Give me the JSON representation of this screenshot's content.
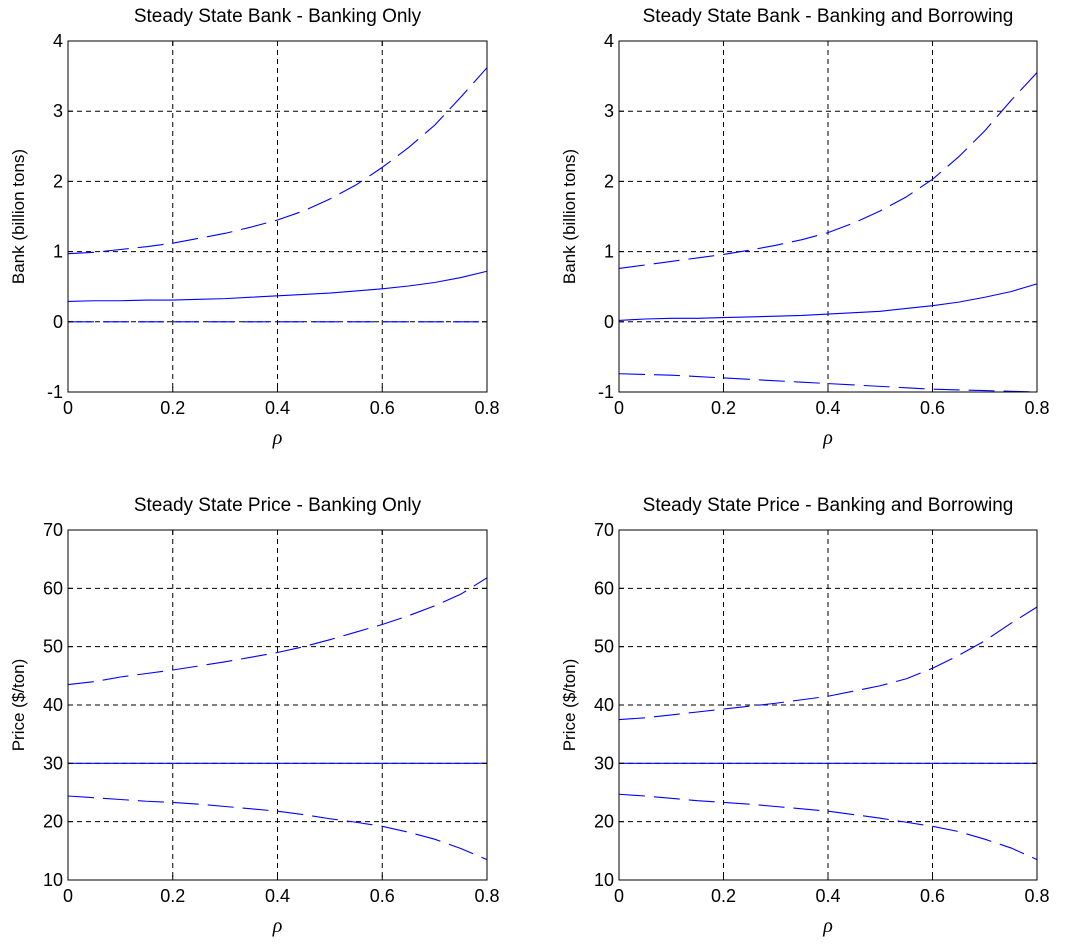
{
  "chart_data": [
    {
      "type": "line",
      "title": "Steady State Bank - Banking Only",
      "xlabel": "ρ",
      "ylabel": "Bank (billion tons)",
      "xlim": [
        0,
        0.8
      ],
      "ylim": [
        -1,
        4
      ],
      "xticks": [
        0,
        0.2,
        0.4,
        0.6,
        0.8
      ],
      "xtick_labels": [
        "0",
        "0.2",
        "0.4",
        "0.6",
        "0.8"
      ],
      "yticks": [
        -1,
        0,
        1,
        2,
        3,
        4
      ],
      "ytick_labels": [
        "-1",
        "0",
        "1",
        "2",
        "3",
        "4"
      ],
      "grid": true,
      "color": "#0000ff",
      "x": [
        0,
        0.05,
        0.1,
        0.15,
        0.2,
        0.25,
        0.3,
        0.35,
        0.4,
        0.45,
        0.5,
        0.55,
        0.6,
        0.65,
        0.7,
        0.75,
        0.8
      ],
      "series": [
        {
          "style": "dashed",
          "values": [
            0.97,
            0.99,
            1.03,
            1.07,
            1.12,
            1.19,
            1.26,
            1.35,
            1.45,
            1.58,
            1.75,
            1.95,
            2.2,
            2.48,
            2.8,
            3.2,
            3.62
          ]
        },
        {
          "style": "solid",
          "values": [
            0.29,
            0.3,
            0.3,
            0.31,
            0.31,
            0.32,
            0.33,
            0.35,
            0.37,
            0.39,
            0.41,
            0.44,
            0.47,
            0.51,
            0.56,
            0.63,
            0.72
          ]
        },
        {
          "style": "dashed",
          "values": [
            0,
            0,
            0,
            0,
            0,
            0,
            0,
            0,
            0,
            0,
            0,
            0,
            0,
            0,
            0,
            0,
            0
          ]
        }
      ]
    },
    {
      "type": "line",
      "title": "Steady State Bank - Banking and Borrowing",
      "xlabel": "ρ",
      "ylabel": "Bank (billion tons)",
      "xlim": [
        0,
        0.8
      ],
      "ylim": [
        -1,
        4
      ],
      "xticks": [
        0,
        0.2,
        0.4,
        0.6,
        0.8
      ],
      "xtick_labels": [
        "0",
        "0.2",
        "0.4",
        "0.6",
        "0.8"
      ],
      "yticks": [
        -1,
        0,
        1,
        2,
        3,
        4
      ],
      "ytick_labels": [
        "-1",
        "0",
        "1",
        "2",
        "3",
        "4"
      ],
      "grid": true,
      "color": "#0000ff",
      "x": [
        0,
        0.05,
        0.1,
        0.15,
        0.2,
        0.25,
        0.3,
        0.35,
        0.4,
        0.45,
        0.5,
        0.55,
        0.6,
        0.65,
        0.7,
        0.75,
        0.8
      ],
      "series": [
        {
          "style": "dashed",
          "values": [
            0.76,
            0.81,
            0.86,
            0.91,
            0.96,
            1.02,
            1.09,
            1.17,
            1.27,
            1.41,
            1.58,
            1.78,
            2.03,
            2.35,
            2.72,
            3.15,
            3.55
          ]
        },
        {
          "style": "solid",
          "values": [
            0.02,
            0.04,
            0.05,
            0.05,
            0.06,
            0.07,
            0.08,
            0.09,
            0.11,
            0.13,
            0.15,
            0.19,
            0.23,
            0.28,
            0.35,
            0.43,
            0.54
          ]
        },
        {
          "style": "dashed",
          "values": [
            -0.74,
            -0.75,
            -0.76,
            -0.78,
            -0.8,
            -0.82,
            -0.84,
            -0.86,
            -0.88,
            -0.9,
            -0.92,
            -0.94,
            -0.96,
            -0.97,
            -0.98,
            -0.99,
            -1.0
          ]
        }
      ]
    },
    {
      "type": "line",
      "title": "Steady State Price - Banking Only",
      "xlabel": "ρ",
      "ylabel": "Price ($/ton)",
      "xlim": [
        0,
        0.8
      ],
      "ylim": [
        10,
        70
      ],
      "xticks": [
        0,
        0.2,
        0.4,
        0.6,
        0.8
      ],
      "xtick_labels": [
        "0",
        "0.2",
        "0.4",
        "0.6",
        "0.8"
      ],
      "yticks": [
        10,
        20,
        30,
        40,
        50,
        60,
        70
      ],
      "ytick_labels": [
        "10",
        "20",
        "30",
        "40",
        "50",
        "60",
        "70"
      ],
      "grid": true,
      "color": "#0000ff",
      "x": [
        0,
        0.05,
        0.1,
        0.15,
        0.2,
        0.25,
        0.3,
        0.35,
        0.4,
        0.45,
        0.5,
        0.55,
        0.6,
        0.65,
        0.7,
        0.75,
        0.8
      ],
      "series": [
        {
          "style": "dashed",
          "values": [
            43.5,
            44.0,
            44.8,
            45.4,
            46.0,
            46.7,
            47.4,
            48.2,
            49.0,
            50.0,
            51.2,
            52.5,
            53.8,
            55.3,
            57.0,
            59.0,
            61.8
          ]
        },
        {
          "style": "solid",
          "values": [
            30,
            30,
            30,
            30,
            30,
            30,
            30,
            30,
            30,
            30,
            30,
            30,
            30,
            30,
            30,
            30,
            30
          ]
        },
        {
          "style": "dashed",
          "values": [
            24.4,
            24.1,
            23.8,
            23.5,
            23.3,
            23.0,
            22.6,
            22.2,
            21.8,
            21.2,
            20.5,
            19.9,
            19.2,
            18.2,
            17.0,
            15.4,
            13.5
          ]
        }
      ]
    },
    {
      "type": "line",
      "title": "Steady State Price - Banking and Borrowing",
      "xlabel": "ρ",
      "ylabel": "Price ($/ton)",
      "xlim": [
        0,
        0.8
      ],
      "ylim": [
        10,
        70
      ],
      "xticks": [
        0,
        0.2,
        0.4,
        0.6,
        0.8
      ],
      "xtick_labels": [
        "0",
        "0.2",
        "0.4",
        "0.6",
        "0.8"
      ],
      "yticks": [
        10,
        20,
        30,
        40,
        50,
        60,
        70
      ],
      "ytick_labels": [
        "10",
        "20",
        "30",
        "40",
        "50",
        "60",
        "70"
      ],
      "grid": true,
      "color": "#0000ff",
      "x": [
        0,
        0.05,
        0.1,
        0.15,
        0.2,
        0.25,
        0.3,
        0.35,
        0.4,
        0.45,
        0.5,
        0.55,
        0.6,
        0.65,
        0.7,
        0.75,
        0.8
      ],
      "series": [
        {
          "style": "dashed",
          "values": [
            37.5,
            37.8,
            38.3,
            38.8,
            39.3,
            39.8,
            40.3,
            40.9,
            41.5,
            42.4,
            43.3,
            44.5,
            46.3,
            48.5,
            51.0,
            54.0,
            56.8
          ]
        },
        {
          "style": "solid",
          "values": [
            30,
            30,
            30,
            30,
            30,
            30,
            30,
            30,
            30,
            30,
            30,
            30,
            30,
            30,
            30,
            30,
            30
          ]
        },
        {
          "style": "dashed",
          "values": [
            24.7,
            24.4,
            24.0,
            23.6,
            23.3,
            23.0,
            22.6,
            22.2,
            21.8,
            21.2,
            20.6,
            19.9,
            19.2,
            18.3,
            17.0,
            15.5,
            13.5
          ]
        }
      ]
    }
  ]
}
